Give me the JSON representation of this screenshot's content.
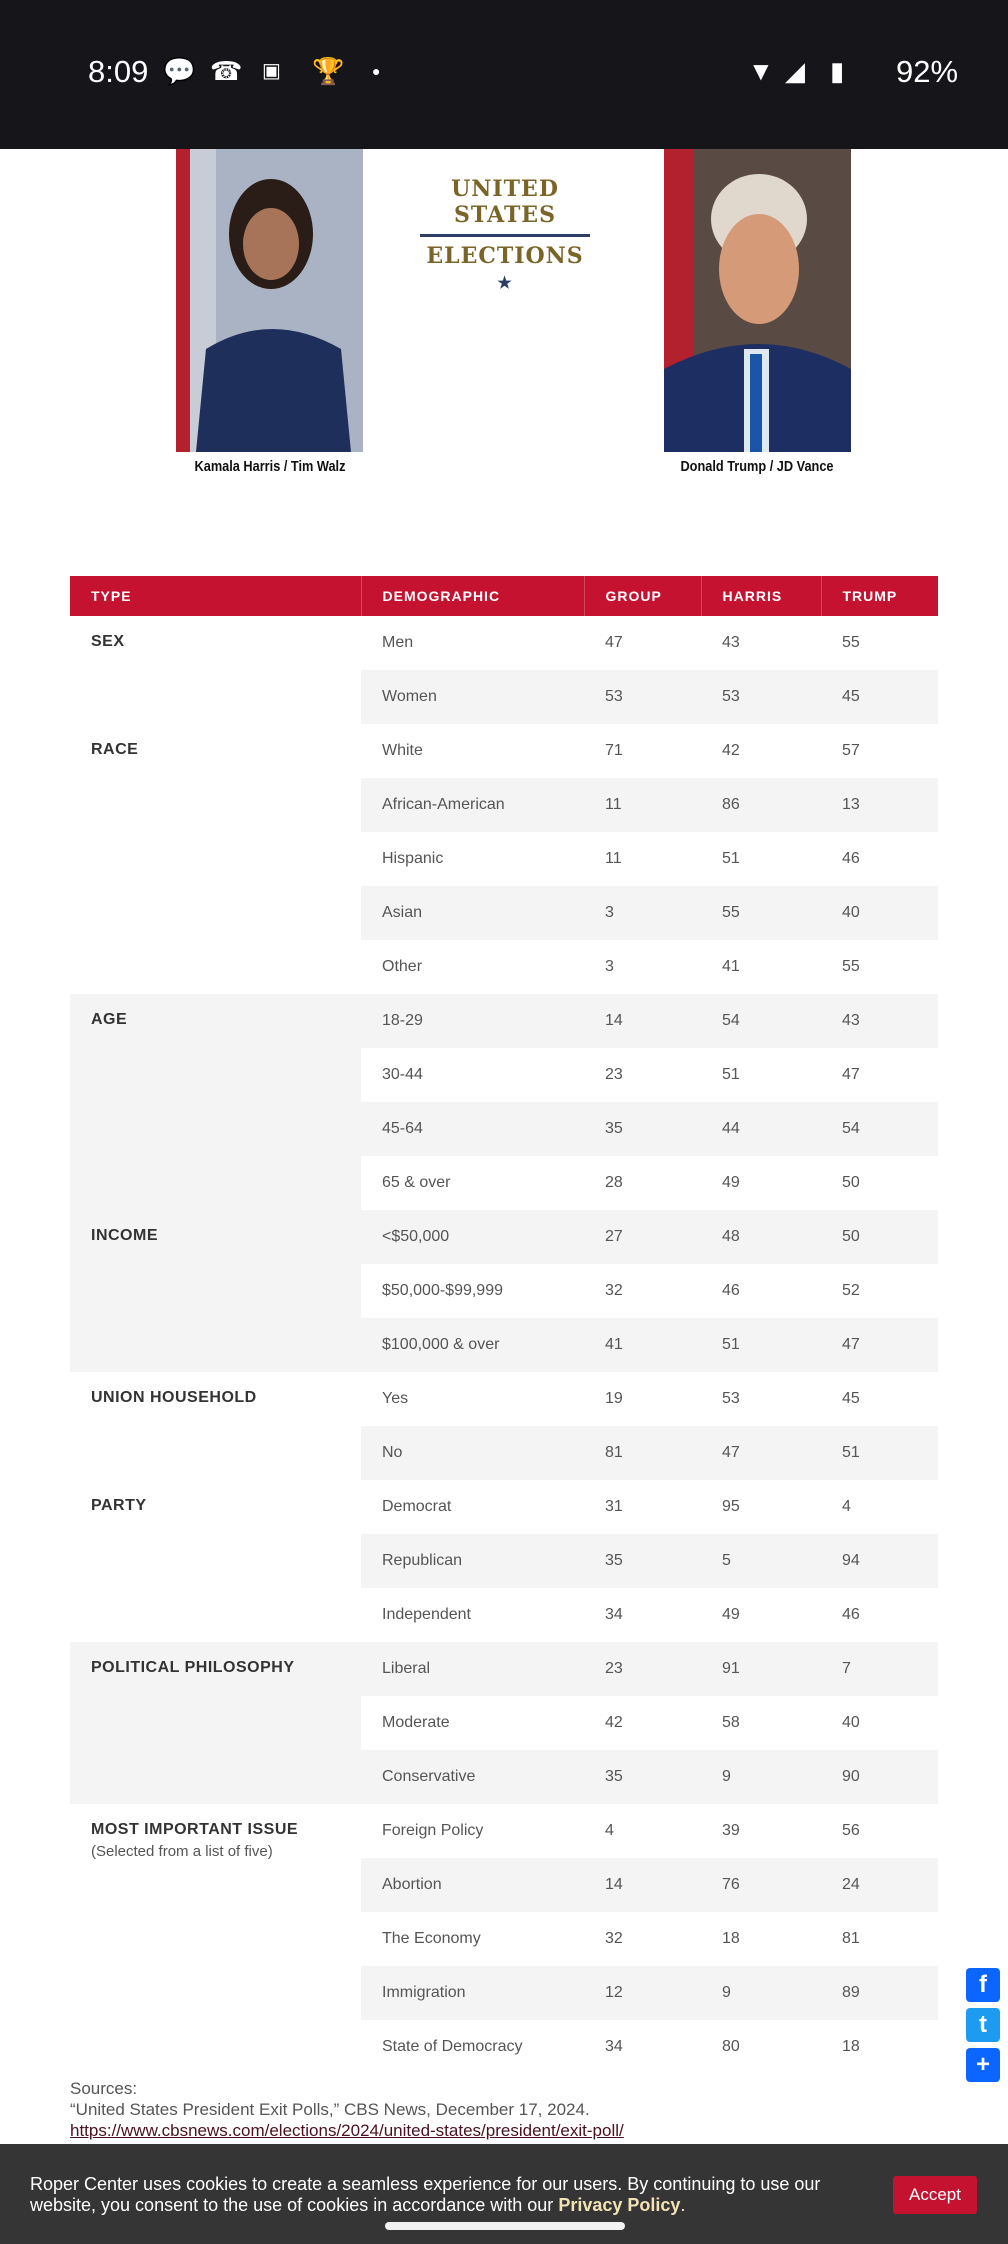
{
  "status_bar": {
    "time": "8:09",
    "battery": "92%",
    "icons": [
      "chat-bubble-icon",
      "missed-call-icon",
      "mlb-icon",
      "trophy-icon",
      "dot-icon",
      "wifi-icon",
      "signal-icon",
      "battery-charging-icon"
    ]
  },
  "hero": {
    "logo_line1": "UNITED STATES",
    "logo_line2": "ELECTIONS",
    "left_caption": "Kamala Harris / Tim Walz",
    "right_caption": "Donald Trump / JD Vance"
  },
  "table": {
    "headers": [
      "TYPE",
      "DEMOGRAPHIC",
      "GROUP",
      "HARRIS",
      "TRUMP"
    ],
    "header_color": "#c41230",
    "groups": [
      {
        "type": "SEX",
        "rows": [
          [
            "Men",
            "47",
            "43",
            "55"
          ],
          [
            "Women",
            "53",
            "53",
            "45"
          ]
        ]
      },
      {
        "type": "RACE",
        "rows": [
          [
            "White",
            "71",
            "42",
            "57"
          ],
          [
            "African-American",
            "11",
            "86",
            "13"
          ],
          [
            "Hispanic",
            "11",
            "51",
            "46"
          ],
          [
            "Asian",
            "3",
            "55",
            "40"
          ],
          [
            "Other",
            "3",
            "41",
            "55"
          ]
        ]
      },
      {
        "type": "AGE",
        "rows": [
          [
            "18-29",
            "14",
            "54",
            "43"
          ],
          [
            "30-44",
            "23",
            "51",
            "47"
          ],
          [
            "45-64",
            "35",
            "44",
            "54"
          ],
          [
            "65 & over",
            "28",
            "49",
            "50"
          ]
        ]
      },
      {
        "type": "INCOME",
        "rows": [
          [
            "<$50,000",
            "27",
            "48",
            "50"
          ],
          [
            "$50,000-$99,999",
            "32",
            "46",
            "52"
          ],
          [
            "$100,000 & over",
            "41",
            "51",
            "47"
          ]
        ]
      },
      {
        "type": "UNION HOUSEHOLD",
        "rows": [
          [
            "Yes",
            "19",
            "53",
            "45"
          ],
          [
            "No",
            "81",
            "47",
            "51"
          ]
        ]
      },
      {
        "type": "PARTY",
        "rows": [
          [
            "Democrat",
            "31",
            "95",
            "4"
          ],
          [
            "Republican",
            "35",
            "5",
            "94"
          ],
          [
            "Independent",
            "34",
            "49",
            "46"
          ]
        ]
      },
      {
        "type": "POLITICAL PHILOSOPHY",
        "rows": [
          [
            "Liberal",
            "23",
            "91",
            "7"
          ],
          [
            "Moderate",
            "42",
            "58",
            "40"
          ],
          [
            "Conservative",
            "35",
            "9",
            "90"
          ]
        ]
      },
      {
        "type": "MOST IMPORTANT ISSUE",
        "subtitle": "(Selected from a list of five)",
        "rows": [
          [
            "Foreign Policy",
            "4",
            "39",
            "56"
          ],
          [
            "Abortion",
            "14",
            "76",
            "24"
          ],
          [
            "The Economy",
            "32",
            "18",
            "81"
          ],
          [
            "Immigration",
            "12",
            "9",
            "89"
          ],
          [
            "State of Democracy",
            "34",
            "80",
            "18"
          ]
        ]
      }
    ]
  },
  "sources": {
    "label": "Sources:",
    "citation": "“United States President Exit Polls,” CBS News, December 17, 2024.",
    "url": "https://www.cbsnews.com/elections/2024/united-states/president/exit-poll/"
  },
  "share": {
    "facebook": "f",
    "twitter": "t",
    "more": "+"
  },
  "cookie": {
    "message": "Roper Center uses cookies to create a seamless experience for our users. By continuing to use our website, you consent to the use of cookies in accordance with our ",
    "link": "Privacy Policy",
    "end": ".",
    "accept": "Accept",
    "accent": "#c41230"
  }
}
